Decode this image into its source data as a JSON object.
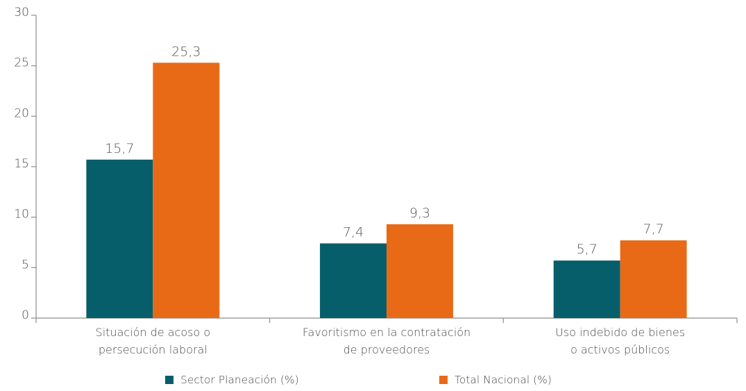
{
  "chart_data": {
    "type": "bar",
    "title": "",
    "xlabel": "",
    "ylabel": "",
    "ylim": [
      0,
      30
    ],
    "yticks": [
      0,
      5,
      10,
      15,
      20,
      25,
      30
    ],
    "grid": false,
    "legend_position": "bottom",
    "categories": [
      [
        "Situación de acoso o",
        "persecución laboral"
      ],
      [
        "Favoritismo en la contratación",
        "de proveedores"
      ],
      [
        "Uso indebido de bienes",
        "o activos públicos"
      ]
    ],
    "series": [
      {
        "name": "Sector Planeación (%)",
        "color": "#065e6b",
        "values": [
          15.7,
          7.4,
          5.7
        ],
        "labels": [
          "15,7",
          "7,4",
          "5,7"
        ]
      },
      {
        "name": "Total Nacional (%)",
        "color": "#e86a17",
        "values": [
          25.3,
          9.3,
          7.7
        ],
        "labels": [
          "25,3",
          "9,3",
          "7,7"
        ]
      }
    ]
  }
}
